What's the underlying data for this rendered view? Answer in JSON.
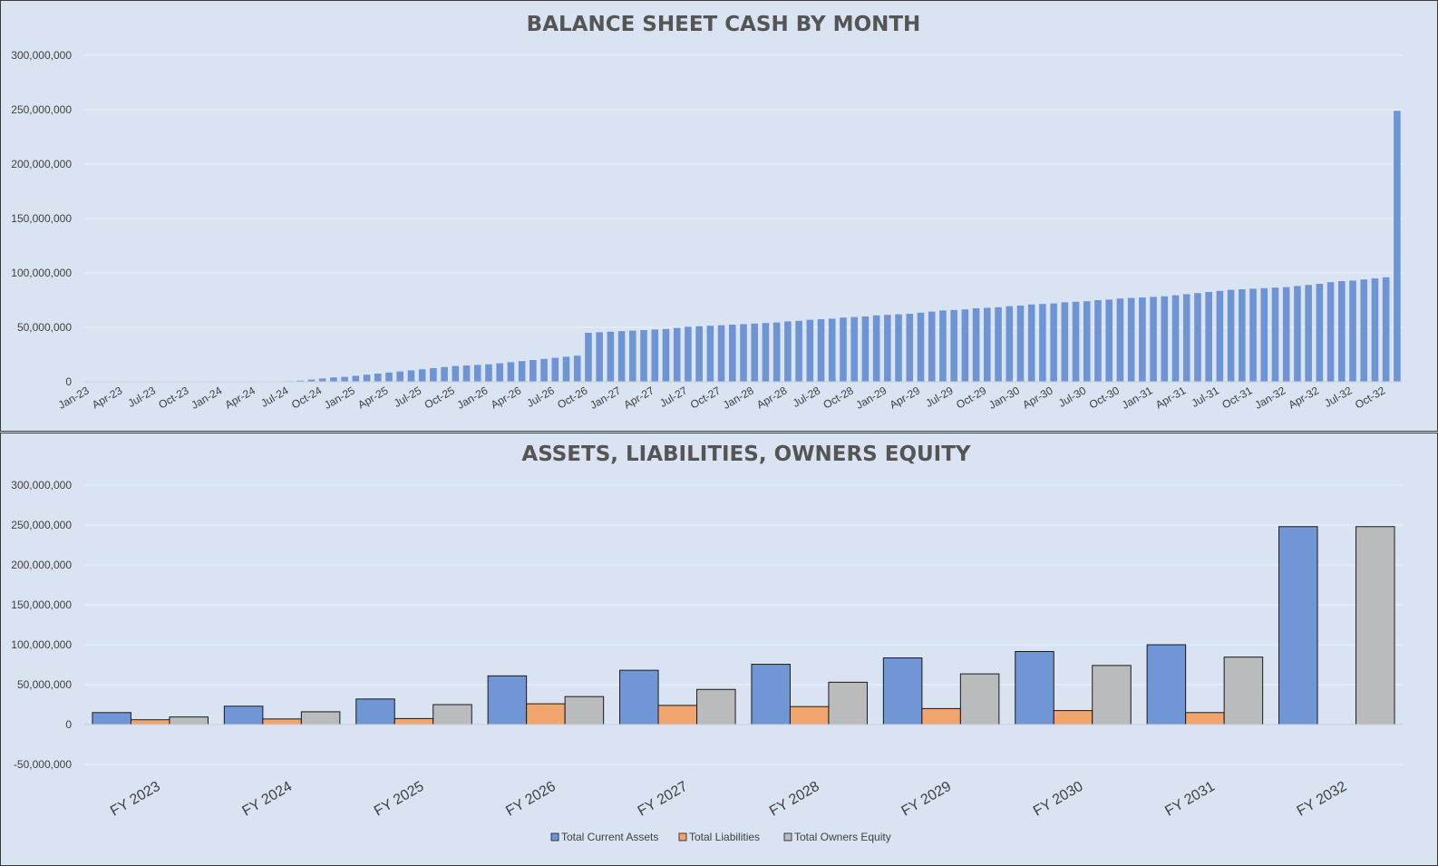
{
  "chart_data": [
    {
      "type": "bar",
      "title": "BALANCE SHEET CASH BY MONTH",
      "xlabel": "",
      "ylabel": "",
      "ylim": [
        0,
        300000000
      ],
      "yticks": [
        "300,000,000",
        "250,000,000",
        "200,000,000",
        "150,000,000",
        "100,000,000",
        "50,000,000",
        "0"
      ],
      "x_tick_labels": [
        "Jan-23",
        "Apr-23",
        "Jul-23",
        "Oct-23",
        "Jan-24",
        "Apr-24",
        "Jul-24",
        "Oct-24",
        "Jan-25",
        "Apr-25",
        "Jul-25",
        "Oct-25",
        "Jan-26",
        "Apr-26",
        "Jul-26",
        "Oct-26",
        "Jan-27",
        "Apr-27",
        "Jul-27",
        "Oct-27",
        "Jan-28",
        "Apr-28",
        "Jul-28",
        "Oct-28",
        "Jan-29",
        "Apr-29",
        "Jul-29",
        "Oct-29",
        "Jan-30",
        "Apr-30",
        "Jul-30",
        "Oct-30",
        "Jan-31",
        "Apr-31",
        "Jul-31",
        "Oct-31",
        "Jan-32",
        "Apr-32",
        "Jul-32",
        "Oct-32"
      ],
      "series": [
        {
          "color": "#6f94d4",
          "values": [
            0,
            0,
            0,
            0,
            0,
            0,
            0,
            0,
            0,
            0,
            0,
            0,
            0,
            0,
            0,
            0,
            0,
            0,
            500000,
            1000000,
            2000000,
            3000000,
            4000000,
            4500000,
            5500000,
            6500000,
            7500000,
            8500000,
            9500000,
            10500000,
            11500000,
            12500000,
            13500000,
            14500000,
            15000000,
            15500000,
            16000000,
            17000000,
            18000000,
            19000000,
            20000000,
            21000000,
            22000000,
            23000000,
            24000000,
            45000000,
            45500000,
            46000000,
            46500000,
            47000000,
            47500000,
            48000000,
            48500000,
            49500000,
            50500000,
            51000000,
            51500000,
            52000000,
            52500000,
            53000000,
            53500000,
            54000000,
            54500000,
            55500000,
            56000000,
            57000000,
            57500000,
            58000000,
            59000000,
            59500000,
            60000000,
            61000000,
            61500000,
            62000000,
            62500000,
            63500000,
            64500000,
            65500000,
            66000000,
            66500000,
            67500000,
            68000000,
            68500000,
            69500000,
            70000000,
            71000000,
            71500000,
            72000000,
            73000000,
            73500000,
            74000000,
            75000000,
            75500000,
            76500000,
            77000000,
            77500000,
            78000000,
            78500000,
            79500000,
            80500000,
            81500000,
            82500000,
            83500000,
            84500000,
            85000000,
            85500000,
            86000000,
            86500000,
            87000000,
            88000000,
            89000000,
            90000000,
            91500000,
            92500000,
            93000000,
            94000000,
            95000000,
            96000000,
            249000000
          ]
        }
      ],
      "grid": true
    },
    {
      "type": "bar",
      "title": "ASSETS, LIABILITIES, OWNERS EQUITY",
      "xlabel": "",
      "ylabel": "",
      "ylim": [
        -50000000,
        300000000
      ],
      "yticks": [
        "300,000,000",
        "250,000,000",
        "200,000,000",
        "150,000,000",
        "100,000,000",
        "50,000,000",
        "0",
        "-50,000,000"
      ],
      "categories": [
        "FY 2023",
        "FY 2024",
        "FY 2025",
        "FY 2026",
        "FY 2027",
        "FY 2028",
        "FY 2029",
        "FY 2030",
        "FY 2031",
        "FY 2032"
      ],
      "series": [
        {
          "name": "Total Current Assets",
          "color": "#7096d6",
          "values": [
            15000000,
            23000000,
            32000000,
            61000000,
            68000000,
            75500000,
            83500000,
            91500000,
            100000000,
            248000000
          ]
        },
        {
          "name": "Total Liabilities",
          "color": "#f0a46e",
          "values": [
            6000000,
            7000000,
            7500000,
            26000000,
            24000000,
            22500000,
            20000000,
            17500000,
            15000000,
            0
          ]
        },
        {
          "name": "Total Owners Equity",
          "color": "#b9bbbd",
          "values": [
            9500000,
            16000000,
            25000000,
            35000000,
            44000000,
            53000000,
            63500000,
            74000000,
            84500000,
            248000000
          ]
        }
      ],
      "legend": "bottom",
      "grid": true
    }
  ]
}
